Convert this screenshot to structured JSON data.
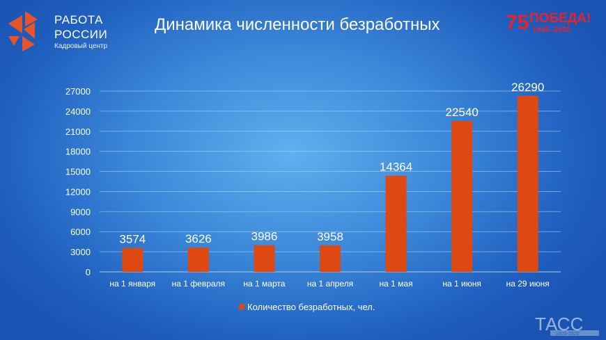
{
  "brand": {
    "line1": "РАБОТА",
    "line2": "РОССИИ",
    "subtitle": "Кадровый центр",
    "logo_icon": "rabota-rossii-logo-icon",
    "logo_color": "#e8542a"
  },
  "header": {
    "title": "Динамика численности безработных"
  },
  "pobeda_badge": {
    "number": "75",
    "word": "ПОБЕДА!",
    "years": "1945–2020",
    "color": "#e4232b"
  },
  "watermark": {
    "text": "ТАСС",
    "sub": "1920-2020"
  },
  "chart_data": {
    "type": "bar",
    "title": "",
    "xlabel": "",
    "ylabel": "",
    "ylim": [
      0,
      27000
    ],
    "yticks": [
      0,
      3000,
      6000,
      9000,
      12000,
      15000,
      18000,
      21000,
      24000,
      27000
    ],
    "grid": true,
    "legend_position": "bottom",
    "categories": [
      "на 1 января",
      "на 1 февраля",
      "на 1 марта",
      "на 1 апреля",
      "на 1 мая",
      "на 1 июня",
      "на 29 июня"
    ],
    "series": [
      {
        "name": "Количество безработных, чел.",
        "values": [
          3574,
          3626,
          3986,
          3958,
          14364,
          22540,
          26290
        ],
        "color": "#de4812"
      }
    ]
  }
}
